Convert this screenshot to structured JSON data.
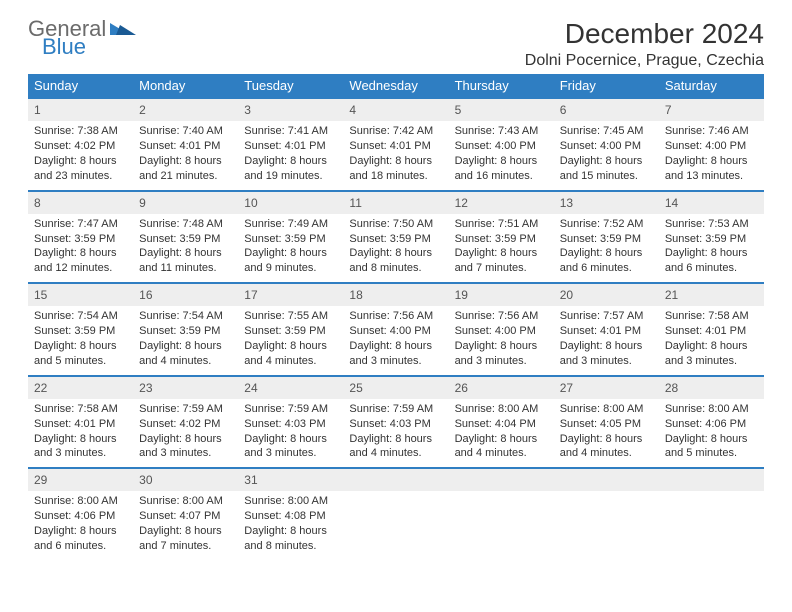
{
  "logo": {
    "general": "General",
    "blue": "Blue"
  },
  "title": "December 2024",
  "location": "Dolni Pocernice, Prague, Czechia",
  "colors": {
    "header_bg": "#2f7ec2",
    "header_text": "#ffffff",
    "daynum_bg": "#eeeeee",
    "border": "#2f7ec2",
    "text": "#333333",
    "logo_gray": "#6b6b6b",
    "logo_blue": "#2f7ec2",
    "background": "#ffffff"
  },
  "weekdays": [
    "Sunday",
    "Monday",
    "Tuesday",
    "Wednesday",
    "Thursday",
    "Friday",
    "Saturday"
  ],
  "weeks": [
    [
      {
        "num": "1",
        "sunrise": "Sunrise: 7:38 AM",
        "sunset": "Sunset: 4:02 PM",
        "daylight": "Daylight: 8 hours and 23 minutes."
      },
      {
        "num": "2",
        "sunrise": "Sunrise: 7:40 AM",
        "sunset": "Sunset: 4:01 PM",
        "daylight": "Daylight: 8 hours and 21 minutes."
      },
      {
        "num": "3",
        "sunrise": "Sunrise: 7:41 AM",
        "sunset": "Sunset: 4:01 PM",
        "daylight": "Daylight: 8 hours and 19 minutes."
      },
      {
        "num": "4",
        "sunrise": "Sunrise: 7:42 AM",
        "sunset": "Sunset: 4:01 PM",
        "daylight": "Daylight: 8 hours and 18 minutes."
      },
      {
        "num": "5",
        "sunrise": "Sunrise: 7:43 AM",
        "sunset": "Sunset: 4:00 PM",
        "daylight": "Daylight: 8 hours and 16 minutes."
      },
      {
        "num": "6",
        "sunrise": "Sunrise: 7:45 AM",
        "sunset": "Sunset: 4:00 PM",
        "daylight": "Daylight: 8 hours and 15 minutes."
      },
      {
        "num": "7",
        "sunrise": "Sunrise: 7:46 AM",
        "sunset": "Sunset: 4:00 PM",
        "daylight": "Daylight: 8 hours and 13 minutes."
      }
    ],
    [
      {
        "num": "8",
        "sunrise": "Sunrise: 7:47 AM",
        "sunset": "Sunset: 3:59 PM",
        "daylight": "Daylight: 8 hours and 12 minutes."
      },
      {
        "num": "9",
        "sunrise": "Sunrise: 7:48 AM",
        "sunset": "Sunset: 3:59 PM",
        "daylight": "Daylight: 8 hours and 11 minutes."
      },
      {
        "num": "10",
        "sunrise": "Sunrise: 7:49 AM",
        "sunset": "Sunset: 3:59 PM",
        "daylight": "Daylight: 8 hours and 9 minutes."
      },
      {
        "num": "11",
        "sunrise": "Sunrise: 7:50 AM",
        "sunset": "Sunset: 3:59 PM",
        "daylight": "Daylight: 8 hours and 8 minutes."
      },
      {
        "num": "12",
        "sunrise": "Sunrise: 7:51 AM",
        "sunset": "Sunset: 3:59 PM",
        "daylight": "Daylight: 8 hours and 7 minutes."
      },
      {
        "num": "13",
        "sunrise": "Sunrise: 7:52 AM",
        "sunset": "Sunset: 3:59 PM",
        "daylight": "Daylight: 8 hours and 6 minutes."
      },
      {
        "num": "14",
        "sunrise": "Sunrise: 7:53 AM",
        "sunset": "Sunset: 3:59 PM",
        "daylight": "Daylight: 8 hours and 6 minutes."
      }
    ],
    [
      {
        "num": "15",
        "sunrise": "Sunrise: 7:54 AM",
        "sunset": "Sunset: 3:59 PM",
        "daylight": "Daylight: 8 hours and 5 minutes."
      },
      {
        "num": "16",
        "sunrise": "Sunrise: 7:54 AM",
        "sunset": "Sunset: 3:59 PM",
        "daylight": "Daylight: 8 hours and 4 minutes."
      },
      {
        "num": "17",
        "sunrise": "Sunrise: 7:55 AM",
        "sunset": "Sunset: 3:59 PM",
        "daylight": "Daylight: 8 hours and 4 minutes."
      },
      {
        "num": "18",
        "sunrise": "Sunrise: 7:56 AM",
        "sunset": "Sunset: 4:00 PM",
        "daylight": "Daylight: 8 hours and 3 minutes."
      },
      {
        "num": "19",
        "sunrise": "Sunrise: 7:56 AM",
        "sunset": "Sunset: 4:00 PM",
        "daylight": "Daylight: 8 hours and 3 minutes."
      },
      {
        "num": "20",
        "sunrise": "Sunrise: 7:57 AM",
        "sunset": "Sunset: 4:01 PM",
        "daylight": "Daylight: 8 hours and 3 minutes."
      },
      {
        "num": "21",
        "sunrise": "Sunrise: 7:58 AM",
        "sunset": "Sunset: 4:01 PM",
        "daylight": "Daylight: 8 hours and 3 minutes."
      }
    ],
    [
      {
        "num": "22",
        "sunrise": "Sunrise: 7:58 AM",
        "sunset": "Sunset: 4:01 PM",
        "daylight": "Daylight: 8 hours and 3 minutes."
      },
      {
        "num": "23",
        "sunrise": "Sunrise: 7:59 AM",
        "sunset": "Sunset: 4:02 PM",
        "daylight": "Daylight: 8 hours and 3 minutes."
      },
      {
        "num": "24",
        "sunrise": "Sunrise: 7:59 AM",
        "sunset": "Sunset: 4:03 PM",
        "daylight": "Daylight: 8 hours and 3 minutes."
      },
      {
        "num": "25",
        "sunrise": "Sunrise: 7:59 AM",
        "sunset": "Sunset: 4:03 PM",
        "daylight": "Daylight: 8 hours and 4 minutes."
      },
      {
        "num": "26",
        "sunrise": "Sunrise: 8:00 AM",
        "sunset": "Sunset: 4:04 PM",
        "daylight": "Daylight: 8 hours and 4 minutes."
      },
      {
        "num": "27",
        "sunrise": "Sunrise: 8:00 AM",
        "sunset": "Sunset: 4:05 PM",
        "daylight": "Daylight: 8 hours and 4 minutes."
      },
      {
        "num": "28",
        "sunrise": "Sunrise: 8:00 AM",
        "sunset": "Sunset: 4:06 PM",
        "daylight": "Daylight: 8 hours and 5 minutes."
      }
    ],
    [
      {
        "num": "29",
        "sunrise": "Sunrise: 8:00 AM",
        "sunset": "Sunset: 4:06 PM",
        "daylight": "Daylight: 8 hours and 6 minutes."
      },
      {
        "num": "30",
        "sunrise": "Sunrise: 8:00 AM",
        "sunset": "Sunset: 4:07 PM",
        "daylight": "Daylight: 8 hours and 7 minutes."
      },
      {
        "num": "31",
        "sunrise": "Sunrise: 8:00 AM",
        "sunset": "Sunset: 4:08 PM",
        "daylight": "Daylight: 8 hours and 8 minutes."
      },
      null,
      null,
      null,
      null
    ]
  ]
}
